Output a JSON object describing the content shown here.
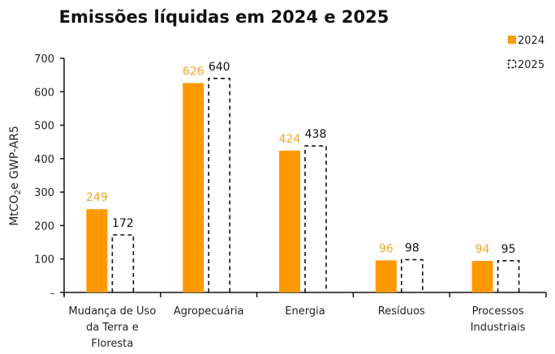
{
  "chart_data": {
    "type": "bar",
    "title": "Emissões líquidas em 2024 e 2025",
    "xlabel": "",
    "ylabel": "MtCO₂e GWP-AR5",
    "ylim": [
      0,
      700
    ],
    "yticks": [
      0,
      100,
      200,
      300,
      400,
      500,
      600,
      700
    ],
    "ytick_labels": [
      "-",
      "100",
      "200",
      "300",
      "400",
      "500",
      "600",
      "700"
    ],
    "categories": [
      [
        "Mudança de Uso",
        "da Terra e",
        "Floresta"
      ],
      [
        "Agropecuária"
      ],
      [
        "Energia"
      ],
      [
        "Resíduos"
      ],
      [
        "Processos",
        "Industriais"
      ]
    ],
    "series": [
      {
        "name": "2024",
        "values": [
          249,
          626,
          424,
          96,
          94
        ],
        "style": "solid",
        "color": "#FF9900",
        "label_color": "#F5A623"
      },
      {
        "name": "2025",
        "values": [
          172,
          640,
          438,
          98,
          95
        ],
        "style": "dashed",
        "color": "#111111",
        "label_color": "#111111"
      }
    ],
    "legend_position": "top-right",
    "grid": false
  }
}
